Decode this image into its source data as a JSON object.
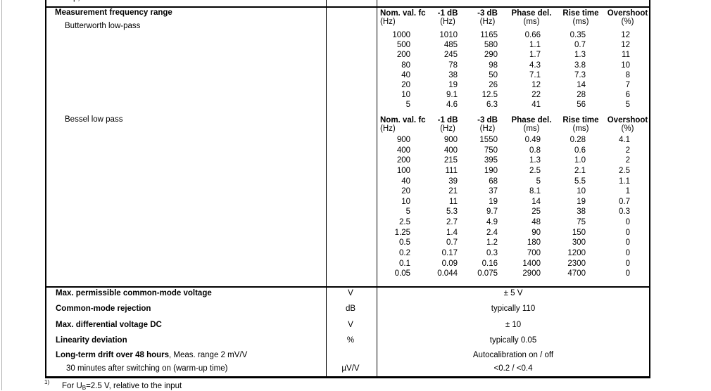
{
  "colors": {
    "text": "#000000",
    "border": "#000000",
    "page_edge": "#b0b0b0",
    "background": "#ffffff"
  },
  "left_column": {
    "section_title": "Measurement frequency range",
    "butterworth_label": "Butterworth low-pass",
    "bessel_label": "Bessel low pass"
  },
  "top_partial_row": {
    "text_remnant": "p,"
  },
  "freq_tables": {
    "headers": [
      "Nom. val. fc",
      "-1 dB",
      "-3 dB",
      "Phase del.",
      "Rise time",
      "Overshoot"
    ],
    "unit_row": [
      "(Hz)",
      "(Hz)",
      "(Hz)",
      "(ms)",
      "(ms)",
      "(%)"
    ],
    "butterworth_rows": [
      [
        "1000",
        "1010",
        "1165",
        "0.66",
        "0.35",
        "12"
      ],
      [
        "500",
        "485",
        "580",
        "1.1",
        "0.7",
        "12"
      ],
      [
        "200",
        "245",
        "290",
        "1.7",
        "1.3",
        "11"
      ],
      [
        "80",
        "78",
        "98",
        "4.3",
        "3.8",
        "10"
      ],
      [
        "40",
        "38",
        "50",
        "7.1",
        "7.3",
        "8"
      ],
      [
        "20",
        "19",
        "26",
        "12",
        "14",
        "7"
      ],
      [
        "10",
        "9.1",
        "12.5",
        "22",
        "28",
        "6"
      ],
      [
        "5",
        "4.6",
        "6.3",
        "41",
        "56",
        "5"
      ]
    ],
    "bessel_rows": [
      [
        "900",
        "900",
        "1550",
        "0.49",
        "0.28",
        "4.1"
      ],
      [
        "400",
        "400",
        "750",
        "0.8",
        "0.6",
        "2"
      ],
      [
        "200",
        "215",
        "395",
        "1.3",
        "1.0",
        "2"
      ],
      [
        "100",
        "111",
        "190",
        "2.5",
        "2.1",
        "2.5"
      ],
      [
        "40",
        "39",
        "68",
        "5",
        "5.5",
        "1.1"
      ],
      [
        "20",
        "21",
        "37",
        "8.1",
        "10",
        "1"
      ],
      [
        "10",
        "11",
        "19",
        "14",
        "19",
        "0.7"
      ],
      [
        "5",
        "5.3",
        "9.7",
        "25",
        "38",
        "0.3"
      ],
      [
        "2.5",
        "2.7",
        "4.9",
        "48",
        "75",
        "0"
      ],
      [
        "1.25",
        "1.4",
        "2.4",
        "90",
        "150",
        "0"
      ],
      [
        "0.5",
        "0.7",
        "1.2",
        "180",
        "300",
        "0"
      ],
      [
        "0.2",
        "0.17",
        "0.3",
        "700",
        "1200",
        "0"
      ],
      [
        "0.1",
        "0.09",
        "0.16",
        "1400",
        "2300",
        "0"
      ],
      [
        "0.05",
        "0.044",
        "0.075",
        "2900",
        "4700",
        "0"
      ]
    ]
  },
  "spec_rows": [
    {
      "label": "Max. permissible common-mode voltage",
      "bold": true,
      "indent": false,
      "unit": "V",
      "value": "± 5 V"
    },
    {
      "label": "Common-mode rejection",
      "bold": true,
      "indent": false,
      "unit": "dB",
      "value": "typically 110"
    },
    {
      "label": "Max. differential voltage DC",
      "bold": true,
      "indent": false,
      "unit": "V",
      "value": "± 10"
    },
    {
      "label": "Linearity deviation",
      "bold": true,
      "indent": false,
      "unit": "%",
      "value": "typically 0.05"
    },
    {
      "label": "Long-term drift over 48 hours",
      "label_suffix": ", Meas. range 2 mV/V",
      "bold": true,
      "indent": false,
      "unit": "",
      "value": "Autocalibration on / off"
    },
    {
      "label": "30 minutes after switching on (warm-up time)",
      "bold": false,
      "indent": true,
      "unit": "µV/V",
      "value": "<0.2 / <0.4"
    }
  ],
  "footnote": {
    "marker": "1)",
    "text_before_sub": "For U",
    "sub": "B",
    "text_after_sub": "=2.5 V, relative to the input"
  }
}
